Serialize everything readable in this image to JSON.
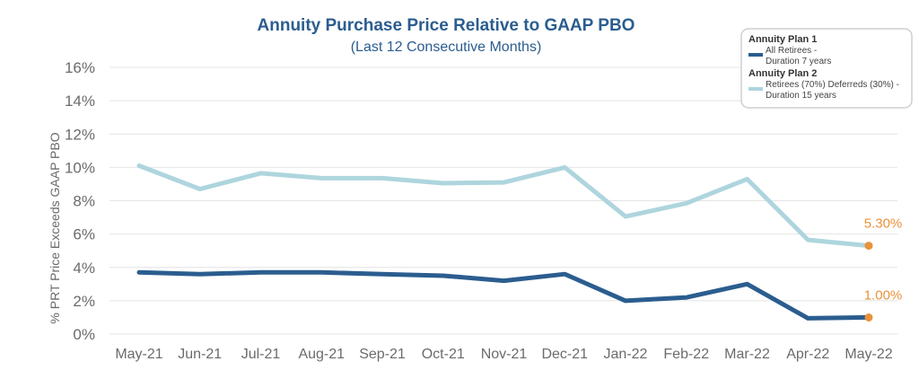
{
  "chart_data": {
    "type": "line",
    "title": "Annuity Purchase Price Relative to GAAP PBO",
    "subtitle": "(Last 12 Consecutive Months)",
    "ylabel": "% PRT Price Exceeds GAAP PBO",
    "xlabel": "",
    "ylim": [
      0,
      16
    ],
    "yticks": [
      0,
      2,
      4,
      6,
      8,
      10,
      12,
      14,
      16
    ],
    "ytick_labels": [
      "0%",
      "2%",
      "4%",
      "6%",
      "8%",
      "10%",
      "12%",
      "14%",
      "16%"
    ],
    "grid": true,
    "legend_position": "top-right",
    "categories": [
      "May-21",
      "Jun-21",
      "Jul-21",
      "Aug-21",
      "Sep-21",
      "Oct-21",
      "Nov-21",
      "Dec-21",
      "Jan-22",
      "Feb-22",
      "Mar-22",
      "Apr-22",
      "May-22"
    ],
    "series": [
      {
        "name": "Annuity Plan 1",
        "legend_lines": [
          "All Retirees -",
          "Duration 7 years"
        ],
        "color": "#2b5d8f",
        "values": [
          3.7,
          3.6,
          3.7,
          3.7,
          3.6,
          3.5,
          3.2,
          3.6,
          2.0,
          2.2,
          3.0,
          0.95,
          1.0
        ],
        "end_label": "1.00%"
      },
      {
        "name": "Annuity Plan 2",
        "legend_lines": [
          "Retirees (70%) Deferreds (30%) -",
          "Duration 15 years"
        ],
        "color": "#aed5de",
        "values": [
          10.1,
          8.7,
          9.65,
          9.35,
          9.35,
          9.05,
          9.1,
          10.0,
          7.05,
          7.85,
          9.3,
          5.65,
          5.3
        ],
        "end_label": "5.30%"
      }
    ],
    "marker_color": "#e8923a"
  }
}
